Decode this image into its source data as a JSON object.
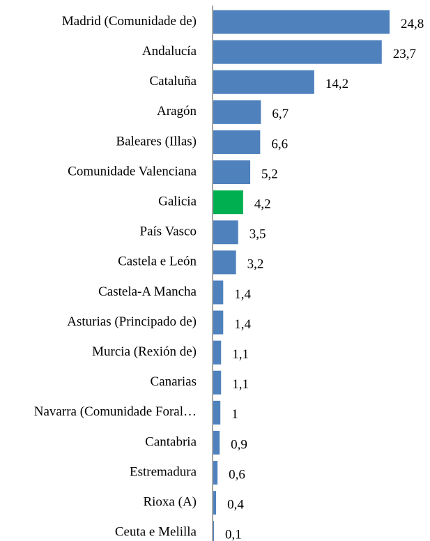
{
  "chart_data": {
    "type": "bar",
    "orientation": "horizontal",
    "categories": [
      "Madrid (Comunidade de)",
      "Andalucía",
      "Cataluña",
      "Aragón",
      "Baleares (Illas)",
      "Comunidade Valenciana",
      "Galicia",
      "País Vasco",
      "Castela e León",
      "Castela-A Mancha",
      "Asturias (Principado de)",
      "Murcia (Rexión de)",
      "Canarias",
      "Navarra (Comunidade Foral…",
      "Cantabria",
      "Estremadura",
      "Rioxa (A)",
      "Ceuta e Melilla"
    ],
    "values": [
      24.8,
      23.7,
      14.2,
      6.7,
      6.6,
      5.2,
      4.2,
      3.5,
      3.2,
      1.4,
      1.4,
      1.1,
      1.1,
      1,
      0.9,
      0.6,
      0.4,
      0.1
    ],
    "value_labels": [
      "24,8",
      "23,7",
      "14,2",
      "6,7",
      "6,6",
      "5,2",
      "4,2",
      "3,5",
      "3,2",
      "1,4",
      "1,4",
      "1,1",
      "1,1",
      "1",
      "0,9",
      "0,6",
      "0,4",
      "0,1"
    ],
    "colors": [
      "#4f81bd",
      "#4f81bd",
      "#4f81bd",
      "#4f81bd",
      "#4f81bd",
      "#4f81bd",
      "#00b050",
      "#4f81bd",
      "#4f81bd",
      "#4f81bd",
      "#4f81bd",
      "#4f81bd",
      "#4f81bd",
      "#4f81bd",
      "#4f81bd",
      "#4f81bd",
      "#4f81bd",
      "#4f81bd"
    ]
  }
}
